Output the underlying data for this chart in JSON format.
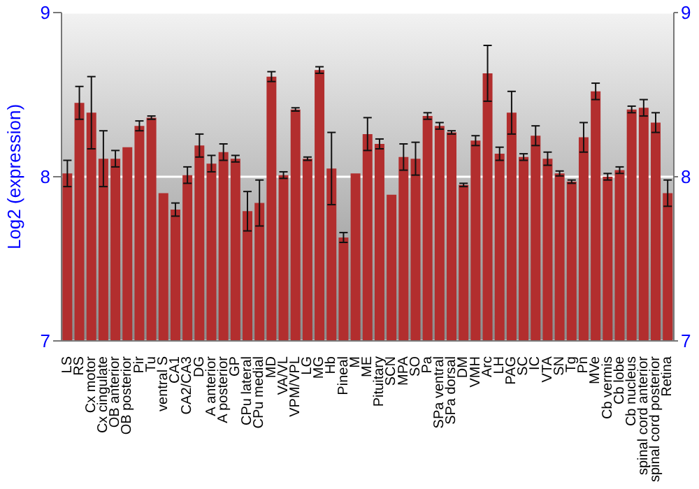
{
  "chart_data": {
    "type": "bar",
    "ylabel": "Log2 (expression)",
    "categories": [
      "LS",
      "RS",
      "Cx motor",
      "Cx cingulate",
      "OB anterior",
      "OB posterior",
      "Pir",
      "Tu",
      "ventral S",
      "CA1",
      "CA2/CA3",
      "DG",
      "A anterior",
      "A posterior",
      "GP",
      "CPu lateral",
      "CPu medial",
      "MD",
      "VA/VL",
      "VPM/VPL",
      "LG",
      "MG",
      "Hb",
      "Pineal",
      "M",
      "ME",
      "Pituitary",
      "SCN",
      "MPA",
      "SO",
      "Pa",
      "SPa ventral",
      "SPa dorsal",
      "DM",
      "VMH",
      "Arc",
      "LH",
      "PAG",
      "SC",
      "IC",
      "VTA",
      "SN",
      "Tg",
      "Pn",
      "MVe",
      "Cb vermis",
      "Cb lobe",
      "Cb nucleus",
      "spinal cord anterior",
      "spinal cord posterior",
      "Retina"
    ],
    "values": [
      8.02,
      8.45,
      8.39,
      8.11,
      8.11,
      8.18,
      8.31,
      8.36,
      7.9,
      7.8,
      8.01,
      8.19,
      8.08,
      8.15,
      8.11,
      7.79,
      7.84,
      8.61,
      8.01,
      8.41,
      8.11,
      8.65,
      8.05,
      7.63,
      8.02,
      8.26,
      8.2,
      7.89,
      8.12,
      8.11,
      8.37,
      8.31,
      8.27,
      7.95,
      8.22,
      8.63,
      8.14,
      8.39,
      8.12,
      8.25,
      8.11,
      8.02,
      7.97,
      8.24,
      8.52,
      8.0,
      8.04,
      8.41,
      8.42,
      8.33,
      7.9
    ],
    "errors": [
      0.08,
      0.1,
      0.22,
      0.17,
      0.05,
      null,
      0.03,
      0.01,
      null,
      0.04,
      0.05,
      0.07,
      0.05,
      0.05,
      0.02,
      0.12,
      0.14,
      0.03,
      0.02,
      0.01,
      0.01,
      0.02,
      0.22,
      0.03,
      null,
      0.1,
      0.03,
      null,
      0.08,
      0.1,
      0.02,
      0.02,
      0.01,
      0.01,
      0.03,
      0.17,
      0.04,
      0.13,
      0.02,
      0.06,
      0.04,
      0.015,
      0.01,
      0.09,
      0.05,
      0.02,
      0.02,
      0.02,
      0.05,
      0.06,
      0.08
    ],
    "color": "#b22e2e",
    "ylim": [
      7,
      9
    ],
    "yticks": [
      7,
      8,
      9
    ],
    "y2lim": [
      7,
      9
    ],
    "y2ticks": [
      7,
      8,
      9
    ],
    "grid": "y"
  }
}
